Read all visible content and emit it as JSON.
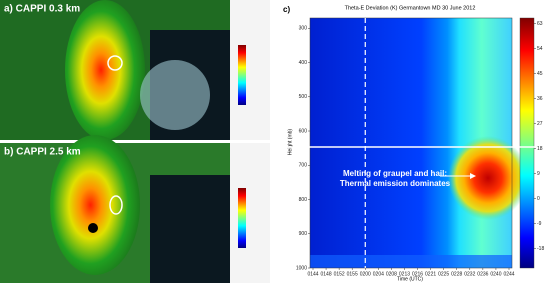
{
  "panels": [
    {
      "label": "a) CAPPI 0.3 km"
    },
    {
      "label": "b) CAPPI 2.5 km"
    }
  ],
  "chart_data": {
    "type": "heatmap",
    "panel_label": "c)",
    "title": "Theta-E Deviation (K) Germantown MD 30 June 2012",
    "x_label": "Time (UTC)",
    "y_label": "Height (mb)",
    "categories": [
      "0144",
      "0148",
      "0152",
      "0155",
      "0200",
      "0204",
      "0208",
      "0213",
      "0216",
      "0221",
      "0225",
      "0228",
      "0232",
      "0236",
      "0240",
      "0244"
    ],
    "ylim": [
      1000,
      270
    ],
    "yticks": [
      300,
      400,
      500,
      600,
      700,
      800,
      900,
      1000
    ],
    "clim": [
      -25,
      65
    ],
    "cticks": [
      63,
      54,
      45,
      36,
      27,
      18,
      9,
      0,
      -9,
      -18
    ],
    "annotation": "Melting of graupel and hail: Thermal emission dominates"
  }
}
